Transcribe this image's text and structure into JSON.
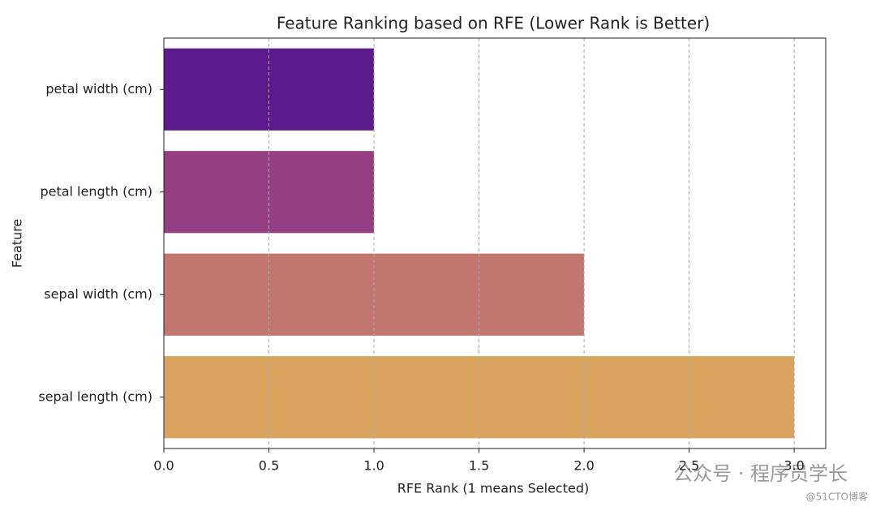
{
  "chart_data": {
    "type": "barh",
    "title": "Feature Ranking based on RFE (Lower Rank is Better)",
    "xlabel": "RFE Rank (1 means Selected)",
    "ylabel": "Feature",
    "categories": [
      "petal width (cm)",
      "petal length (cm)",
      "sepal width (cm)",
      "sepal length (cm)"
    ],
    "values": [
      1,
      1,
      2,
      3
    ],
    "colors": [
      "#5c1a8c",
      "#933f81",
      "#c27670",
      "#d9a45d"
    ],
    "xlim": [
      0,
      3.15
    ],
    "xticks": [
      {
        "value": 0,
        "label": "0.0"
      },
      {
        "value": 0.5,
        "label": "0.5"
      },
      {
        "value": 1,
        "label": "1.0"
      },
      {
        "value": 1.5,
        "label": "1.5"
      },
      {
        "value": 2,
        "label": "2.0"
      },
      {
        "value": 2.5,
        "label": "2.5"
      },
      {
        "value": 3,
        "label": "3.0"
      }
    ],
    "grid": true,
    "watermark": "公众号 · 程序员学长",
    "watermark2": "@51CTO博客"
  }
}
